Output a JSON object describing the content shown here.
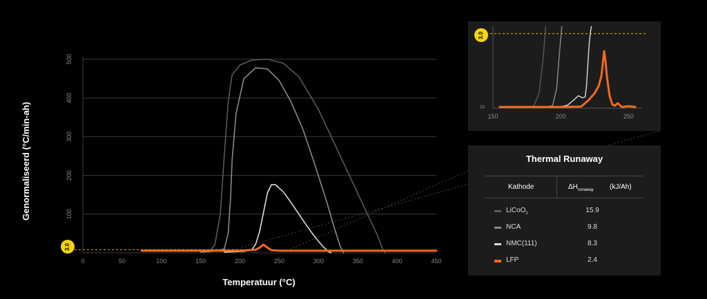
{
  "chart_data": [
    {
      "type": "line",
      "xlabel": "Temperatuur (°C)",
      "ylabel": "Genormaliseerd (°C/min-ah)",
      "xlim": [
        0,
        450
      ],
      "ylim": [
        0,
        500
      ],
      "x_ticks": [
        "0",
        "50",
        "100",
        "150",
        "200",
        "250",
        "300",
        "350",
        "400",
        "450"
      ],
      "y_ticks": [
        "100",
        "200",
        "300",
        "400",
        "500"
      ],
      "grid": "horizontal",
      "threshold": {
        "label": "3.0",
        "value": 3.0,
        "color": "#f5d50a"
      },
      "series": [
        {
          "key": "licoo2",
          "color": "#5a5a5a",
          "x": [
            160,
            168,
            175,
            180,
            185,
            190,
            200,
            215,
            235,
            255,
            275,
            300,
            330,
            360,
            375,
            382,
            385
          ],
          "y": [
            2,
            20,
            100,
            250,
            390,
            460,
            485,
            498,
            500,
            490,
            455,
            370,
            240,
            110,
            45,
            8,
            0
          ]
        },
        {
          "key": "nca",
          "color": "#8a8a8a",
          "x": [
            150,
            165,
            180,
            185,
            188,
            190,
            195,
            205,
            220,
            235,
            250,
            265,
            280,
            295,
            310,
            320,
            328,
            332
          ],
          "y": [
            2,
            4,
            10,
            50,
            140,
            240,
            360,
            450,
            478,
            475,
            445,
            390,
            320,
            230,
            135,
            65,
            15,
            0
          ]
        },
        {
          "key": "nmc",
          "color": "#dddddd",
          "x": [
            180,
            205,
            215,
            220,
            225,
            230,
            235,
            240,
            245,
            255,
            265,
            275,
            285,
            295,
            305,
            312,
            316
          ],
          "y": [
            2,
            4,
            8,
            22,
            55,
            105,
            155,
            176,
            176,
            158,
            130,
            100,
            70,
            42,
            18,
            4,
            0
          ]
        },
        {
          "key": "lfp",
          "color": "#f26a21",
          "x": [
            75,
            100,
            150,
            200,
            210,
            220,
            225,
            230,
            235,
            240,
            250,
            300,
            350,
            400,
            450
          ],
          "y": [
            2,
            2,
            2,
            2,
            2.5,
            3,
            5,
            8,
            5,
            2.5,
            2,
            2,
            2,
            2,
            2
          ]
        }
      ]
    },
    {
      "type": "line",
      "xlim": [
        150,
        260
      ],
      "ylim": [
        0,
        3.3
      ],
      "x_ticks": [
        "150",
        "200",
        "250"
      ],
      "y_ticks": [
        "0"
      ],
      "threshold": {
        "label": "3.0",
        "value": 3.0,
        "color": "#f5d50a"
      },
      "series": [
        {
          "key": "licoo2",
          "color": "#5a5a5a",
          "x": [
            155,
            175,
            180,
            184,
            187,
            189
          ],
          "y": [
            0.05,
            0.06,
            0.08,
            0.6,
            2.0,
            3.4
          ]
        },
        {
          "key": "nca",
          "color": "#8a8a8a",
          "x": [
            155,
            190,
            194,
            197,
            199,
            201
          ],
          "y": [
            0.05,
            0.06,
            0.1,
            0.8,
            2.2,
            3.4
          ]
        },
        {
          "key": "nmc",
          "color": "#dddddd",
          "x": [
            155,
            200,
            205,
            210,
            213,
            216,
            218,
            219,
            220,
            221,
            222,
            223
          ],
          "y": [
            0.05,
            0.06,
            0.12,
            0.35,
            0.5,
            0.42,
            0.45,
            0.9,
            1.8,
            2.6,
            3.1,
            3.4
          ]
        },
        {
          "key": "lfp",
          "color": "#f26a21",
          "x": [
            155,
            200,
            215,
            220,
            225,
            228,
            230,
            232,
            233,
            234,
            236,
            238,
            240,
            242,
            245,
            250,
            255
          ],
          "y": [
            0.05,
            0.05,
            0.06,
            0.3,
            0.6,
            0.9,
            1.3,
            2.3,
            1.9,
            1.3,
            0.5,
            0.15,
            0.1,
            0.2,
            0.05,
            0.08,
            0.05
          ]
        }
      ]
    }
  ],
  "table": {
    "title": "Thermal Runaway",
    "col_kathode": "Kathode",
    "col_delta": "ΔH",
    "col_delta_sub": "runaway",
    "col_unit": "(kJ/Ah)",
    "rows": [
      {
        "base": "LiCoO",
        "sub": "2",
        "value": "15.9",
        "color": "#5a5a5a"
      },
      {
        "base": "NCA",
        "sub": "",
        "value": "9.8",
        "color": "#8a8a8a"
      },
      {
        "base": "NMC(111)",
        "sub": "",
        "value": "8.3",
        "color": "#dddddd"
      },
      {
        "base": "LFP",
        "sub": "",
        "value": "2.4",
        "color": "#f26a21"
      }
    ]
  }
}
